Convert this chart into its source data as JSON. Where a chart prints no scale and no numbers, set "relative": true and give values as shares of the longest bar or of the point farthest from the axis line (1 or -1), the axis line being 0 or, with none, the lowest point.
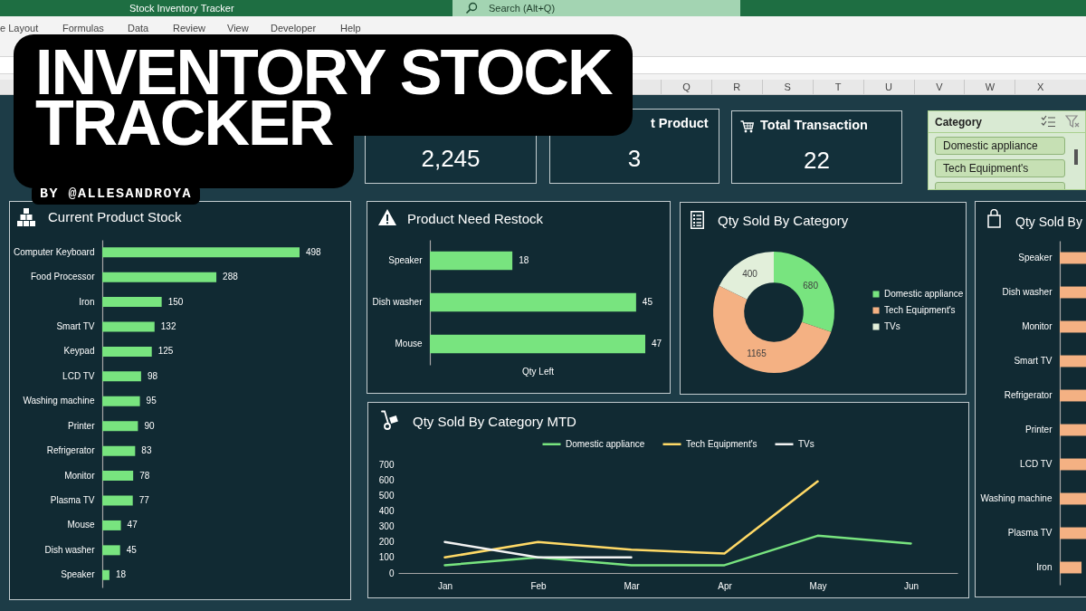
{
  "chart_data": [
    {
      "type": "other",
      "title": "Stock Inventory Tracker",
      "annotations": [
        "Search (Alt+Q)"
      ],
      "categories": [
        "e Layout",
        "Formulas",
        "Data",
        "Review",
        "View",
        "Developer",
        "Help"
      ]
    },
    {
      "type": "other",
      "categories": [
        "Q",
        "R",
        "S",
        "T",
        "U",
        "V",
        "W",
        "X"
      ]
    },
    {
      "type": "other",
      "title": "INVENTORY STOCK TRACKER",
      "subtitle": "BY @ALLESANDROYA"
    },
    {
      "type": "other",
      "annotations": [
        "2,245"
      ]
    },
    {
      "type": "other",
      "title": "t Product",
      "annotations": [
        "3"
      ]
    },
    {
      "type": "other",
      "title": "Total Transaction",
      "annotations": [
        "22"
      ]
    },
    {
      "type": "other",
      "title": "Category",
      "categories": [
        "Domestic appliance",
        "Tech Equipment's"
      ]
    },
    {
      "type": "bar",
      "orientation": "horizontal",
      "title": "Current Product Stock",
      "categories": [
        "Computer Keyboard",
        "Food Processor",
        "Iron",
        "Smart TV",
        "Keypad",
        "LCD TV",
        "Washing machine",
        "Printer",
        "Refrigerator",
        "Monitor",
        "Plasma TV",
        "Mouse",
        "Dish washer",
        "Speaker"
      ],
      "values": [
        498,
        288,
        150,
        132,
        125,
        98,
        95,
        90,
        83,
        78,
        77,
        47,
        45,
        18
      ],
      "color": "#78e47f",
      "data_labels": true,
      "tick_labels": "y"
    },
    {
      "type": "bar",
      "orientation": "horizontal",
      "title": "Product Need Restock",
      "categories": [
        "Speaker",
        "Dish washer",
        "Mouse"
      ],
      "values": [
        18,
        45,
        47
      ],
      "color": "#78e47f",
      "xlabel": "Qty Left",
      "data_labels": true,
      "tick_labels": "y"
    },
    {
      "type": "donut",
      "title": "Qty Sold By Category",
      "categories": [
        "Domestic appliance",
        "Tech Equipment's",
        "TVs"
      ],
      "values": [
        680,
        1165,
        400
      ],
      "colors": [
        "#78e47f",
        "#f4b183",
        "#e2efda"
      ],
      "data_labels": true,
      "legend": "right"
    },
    {
      "type": "line",
      "title": "Qty Sold By Category MTD",
      "categories": [
        "Jan",
        "Feb",
        "Mar",
        "Apr",
        "May",
        "Jun"
      ],
      "series": [
        {
          "name": "Domestic appliance",
          "color": "#78e47f",
          "values": [
            50,
            100,
            50,
            50,
            240,
            190
          ]
        },
        {
          "name": "Tech Equipment's",
          "color": "#ffd966",
          "values": [
            100,
            200,
            150,
            125,
            590,
            null
          ]
        },
        {
          "name": "TVs",
          "color": "#f2f2f2",
          "values": [
            200,
            100,
            100,
            null,
            null,
            null
          ]
        }
      ],
      "ylim": [
        0,
        700
      ],
      "yticks": [
        0,
        100,
        200,
        300,
        400,
        500,
        600,
        700
      ],
      "legend": "top",
      "line_style": "solid"
    },
    {
      "type": "bar",
      "orientation": "horizontal",
      "relative": true,
      "title": "Qty Sold By",
      "categories": [
        "Speaker",
        "Dish washer",
        "Monitor",
        "Smart TV",
        "Refrigerator",
        "Printer",
        "LCD TV",
        "Washing machine",
        "Plasma TV",
        "Iron"
      ],
      "values": [
        1,
        1,
        1,
        1,
        1,
        1,
        1,
        1,
        1,
        0.83
      ],
      "color": "#f4b183"
    }
  ]
}
